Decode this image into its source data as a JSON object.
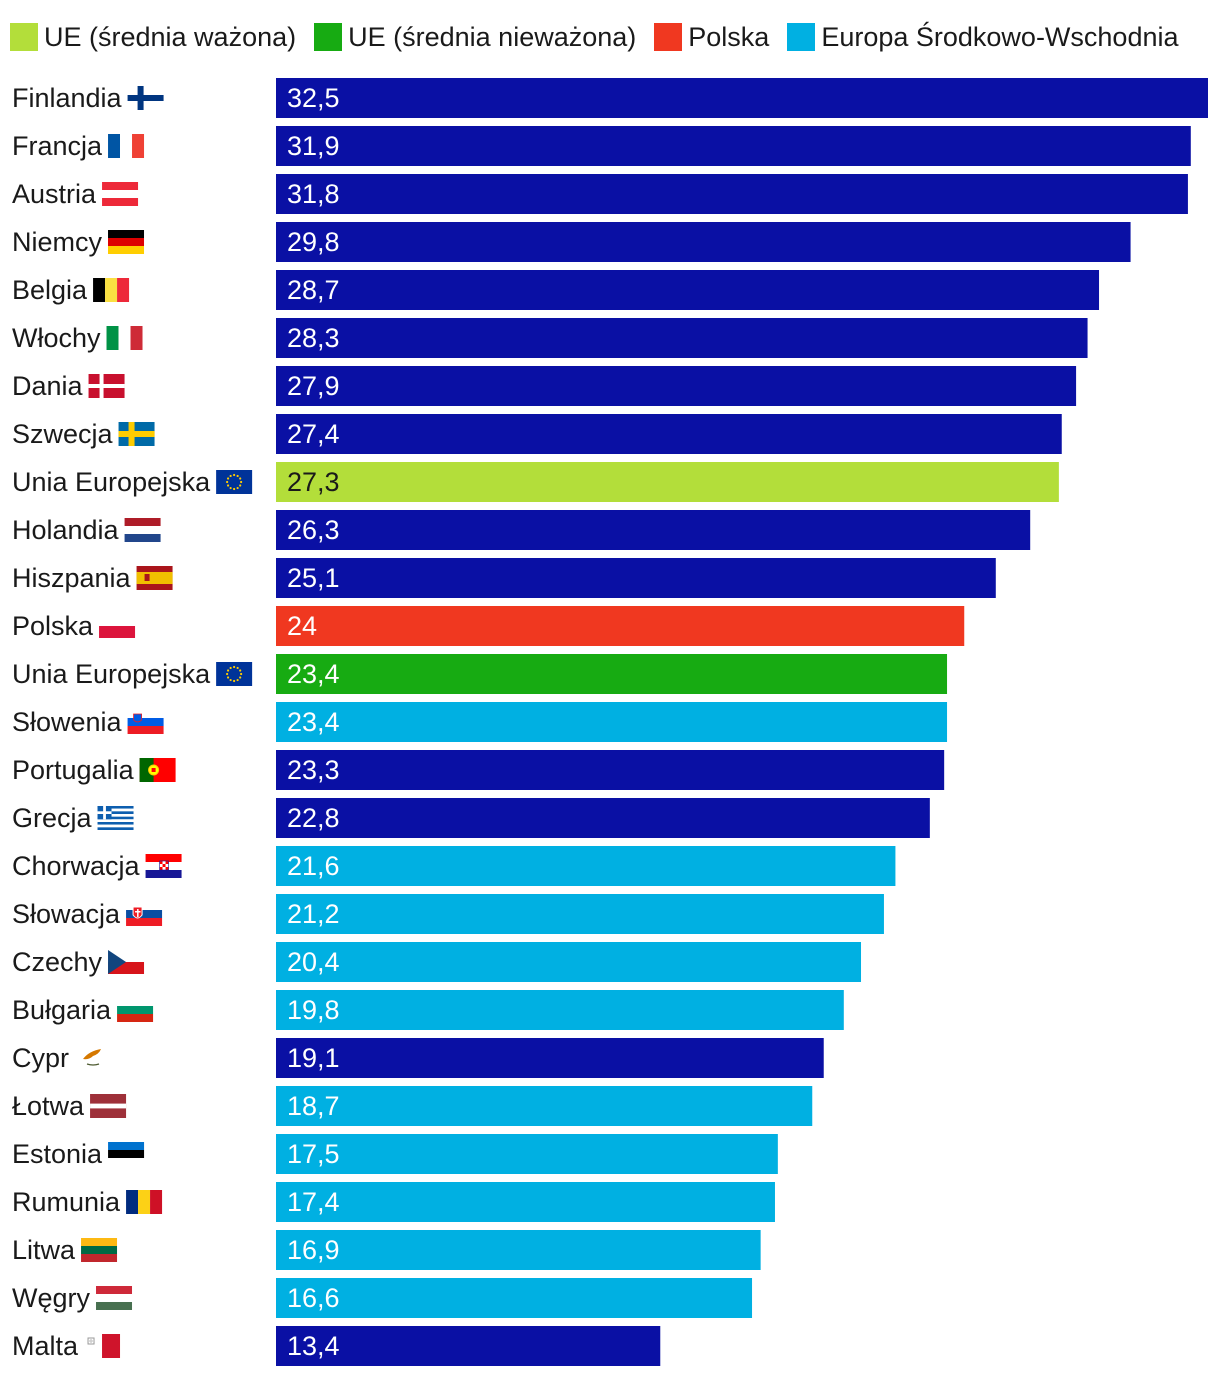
{
  "colors": {
    "default": "#0a10a4",
    "ue_weighted": "#b3de3a",
    "ue_unweighted": "#17ab12",
    "poland": "#f03820",
    "cee": "#00b0e2"
  },
  "legend": [
    {
      "label": "UE (średnia ważona)",
      "color_key": "ue_weighted"
    },
    {
      "label": "UE (średnia nieważona)",
      "color_key": "ue_unweighted"
    },
    {
      "label": "Polska",
      "color_key": "poland"
    },
    {
      "label": "Europa Środkowo-Wschodnia",
      "color_key": "cee"
    }
  ],
  "chart_data": {
    "type": "bar",
    "orientation": "horizontal",
    "title": "",
    "xlabel": "",
    "ylabel": "",
    "xlim": [
      0,
      32.5
    ],
    "grid": false,
    "legend_position": "top",
    "categories": [
      "Finlandia",
      "Francja",
      "Austria",
      "Niemcy",
      "Belgia",
      "Włochy",
      "Dania",
      "Szwecja",
      "Unia Europejska",
      "Holandia",
      "Hiszpania",
      "Polska",
      "Unia Europejska",
      "Słowenia",
      "Portugalia",
      "Grecja",
      "Chorwacja",
      "Słowacja",
      "Czechy",
      "Bułgaria",
      "Cypr",
      "Łotwa",
      "Estonia",
      "Rumunia",
      "Litwa",
      "Węgry",
      "Malta"
    ],
    "values": [
      32.5,
      31.9,
      31.8,
      29.8,
      28.7,
      28.3,
      27.9,
      27.4,
      27.3,
      26.3,
      25.1,
      24,
      23.4,
      23.4,
      23.3,
      22.8,
      21.6,
      21.2,
      20.4,
      19.8,
      19.1,
      18.7,
      17.5,
      17.4,
      16.9,
      16.6,
      13.4
    ],
    "value_labels": [
      "32,5",
      "31,9",
      "31,8",
      "29,8",
      "28,7",
      "28,3",
      "27,9",
      "27,4",
      "27,3",
      "26,3",
      "25,1",
      "24",
      "23,4",
      "23,4",
      "23,3",
      "22,8",
      "21,6",
      "21,2",
      "20,4",
      "19,8",
      "19,1",
      "18,7",
      "17,5",
      "17,4",
      "16,9",
      "16,6",
      "13,4"
    ],
    "groups": [
      "default",
      "default",
      "default",
      "default",
      "default",
      "default",
      "default",
      "default",
      "ue_weighted",
      "default",
      "default",
      "poland",
      "ue_unweighted",
      "cee",
      "default",
      "default",
      "cee",
      "cee",
      "cee",
      "cee",
      "default",
      "cee",
      "cee",
      "cee",
      "cee",
      "cee",
      "default"
    ],
    "flags": [
      "flag-finland",
      "flag-france",
      "flag-austria",
      "flag-germany",
      "flag-belgium",
      "flag-italy",
      "flag-denmark",
      "flag-sweden",
      "flag-eu",
      "flag-netherlands",
      "flag-spain",
      "flag-poland",
      "flag-eu",
      "flag-slovenia",
      "flag-portugal",
      "flag-greece",
      "flag-croatia",
      "flag-slovakia",
      "flag-czechia",
      "flag-bulgaria",
      "flag-cyprus",
      "flag-latvia",
      "flag-estonia",
      "flag-romania",
      "flag-lithuania",
      "flag-hungary",
      "flag-malta"
    ]
  }
}
